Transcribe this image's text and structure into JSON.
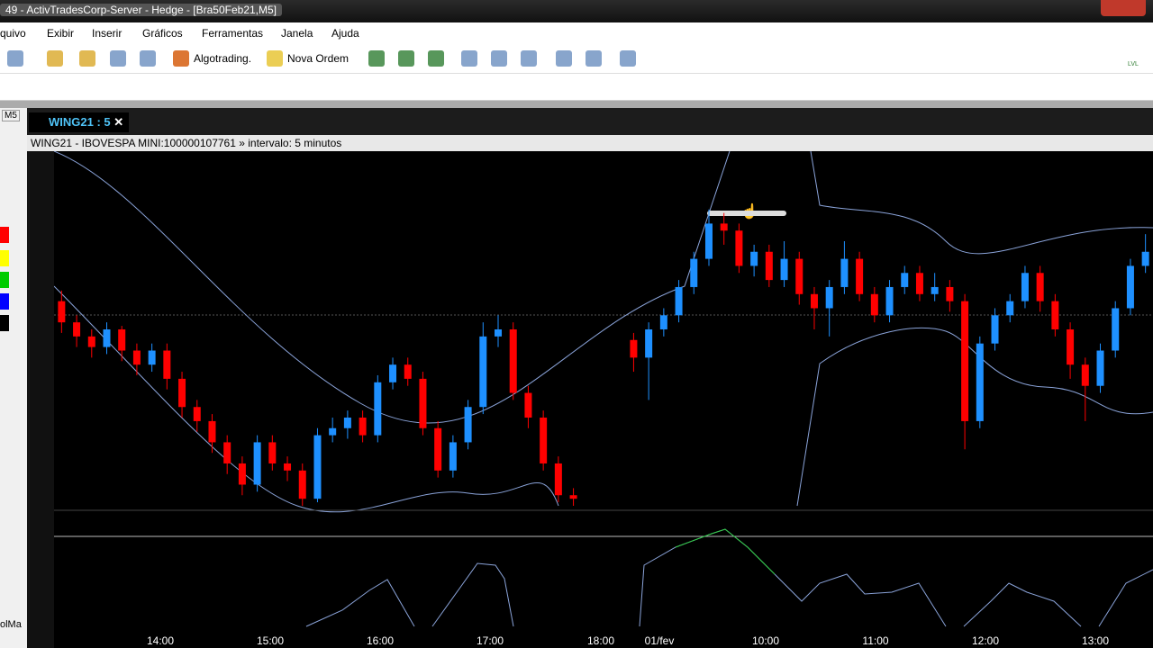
{
  "window": {
    "title": "49 - ActivTradesCorp-Server - Hedge - [Bra50Feb21,M5]"
  },
  "menu": [
    "quivo",
    "Exibir",
    "Inserir",
    "Gráficos",
    "Ferramentas",
    "Janela",
    "Ajuda"
  ],
  "toolbar": {
    "algotrading": "Algotrading.",
    "new_order": "Nova Ordem",
    "lvl": "LVL"
  },
  "side": {
    "timeframe": "M5",
    "bottom_label": "olMa"
  },
  "chart": {
    "tab": "WING21 : 5",
    "info": "WING21 - IBOVESPA MINI:100000107761 » intervalo: 5 minutos",
    "time_labels": [
      "14:00",
      "15:00",
      "16:00",
      "17:00",
      "18:00",
      "01/fev",
      "10:00",
      "11:00",
      "12:00",
      "13:00"
    ],
    "candles": [
      [
        58,
        52,
        61,
        49
      ],
      [
        52,
        48,
        54,
        45
      ],
      [
        48,
        45,
        50,
        42
      ],
      [
        45,
        50,
        52,
        43
      ],
      [
        50,
        44,
        51,
        41
      ],
      [
        44,
        40,
        46,
        37
      ],
      [
        40,
        44,
        46,
        38
      ],
      [
        44,
        36,
        46,
        33
      ],
      [
        36,
        28,
        38,
        25
      ],
      [
        28,
        24,
        30,
        21
      ],
      [
        24,
        18,
        26,
        15
      ],
      [
        18,
        12,
        20,
        9
      ],
      [
        12,
        6,
        14,
        3
      ],
      [
        6,
        18,
        20,
        4
      ],
      [
        18,
        12,
        20,
        10
      ],
      [
        12,
        10,
        14,
        7
      ],
      [
        10,
        2,
        12,
        0
      ],
      [
        2,
        20,
        22,
        1
      ],
      [
        20,
        22,
        25,
        18
      ],
      [
        22,
        25,
        27,
        19
      ],
      [
        25,
        20,
        27,
        18
      ],
      [
        20,
        35,
        37,
        18
      ],
      [
        35,
        40,
        42,
        33
      ],
      [
        40,
        36,
        42,
        34
      ],
      [
        36,
        22,
        38,
        20
      ],
      [
        22,
        10,
        24,
        8
      ],
      [
        10,
        18,
        20,
        8
      ],
      [
        18,
        28,
        30,
        16
      ],
      [
        28,
        48,
        52,
        26
      ],
      [
        48,
        50,
        54,
        45
      ],
      [
        50,
        32,
        52,
        30
      ],
      [
        32,
        25,
        34,
        22
      ],
      [
        25,
        12,
        27,
        10
      ],
      [
        12,
        3,
        14,
        1
      ],
      [
        3,
        2,
        5,
        0
      ],
      null,
      null,
      null,
      [
        47,
        42,
        49,
        38
      ],
      [
        42,
        50,
        52,
        30
      ],
      [
        50,
        54,
        56,
        48
      ],
      [
        54,
        62,
        64,
        52
      ],
      [
        62,
        70,
        72,
        60
      ],
      [
        70,
        80,
        84,
        68
      ],
      [
        80,
        78,
        83,
        74
      ],
      [
        78,
        68,
        80,
        66
      ],
      [
        68,
        72,
        74,
        65
      ],
      [
        72,
        64,
        74,
        62
      ],
      [
        64,
        70,
        75,
        62
      ],
      [
        70,
        60,
        72,
        57
      ],
      [
        60,
        56,
        62,
        50
      ],
      [
        56,
        62,
        64,
        48
      ],
      [
        62,
        70,
        75,
        60
      ],
      [
        70,
        60,
        72,
        58
      ],
      [
        60,
        54,
        62,
        52
      ],
      [
        54,
        62,
        64,
        52
      ],
      [
        62,
        66,
        68,
        60
      ],
      [
        66,
        60,
        68,
        58
      ],
      [
        60,
        62,
        66,
        58
      ],
      [
        62,
        58,
        64,
        55
      ],
      [
        58,
        24,
        60,
        16
      ],
      [
        24,
        46,
        48,
        22
      ],
      [
        46,
        54,
        56,
        44
      ],
      [
        54,
        58,
        60,
        52
      ],
      [
        58,
        66,
        68,
        56
      ],
      [
        66,
        58,
        68,
        55
      ],
      [
        58,
        50,
        60,
        48
      ],
      [
        50,
        40,
        52,
        36
      ],
      [
        40,
        34,
        42,
        24
      ],
      [
        34,
        44,
        46,
        32
      ],
      [
        44,
        56,
        58,
        42
      ],
      [
        56,
        68,
        70,
        54
      ],
      [
        68,
        72,
        77,
        66
      ]
    ]
  }
}
